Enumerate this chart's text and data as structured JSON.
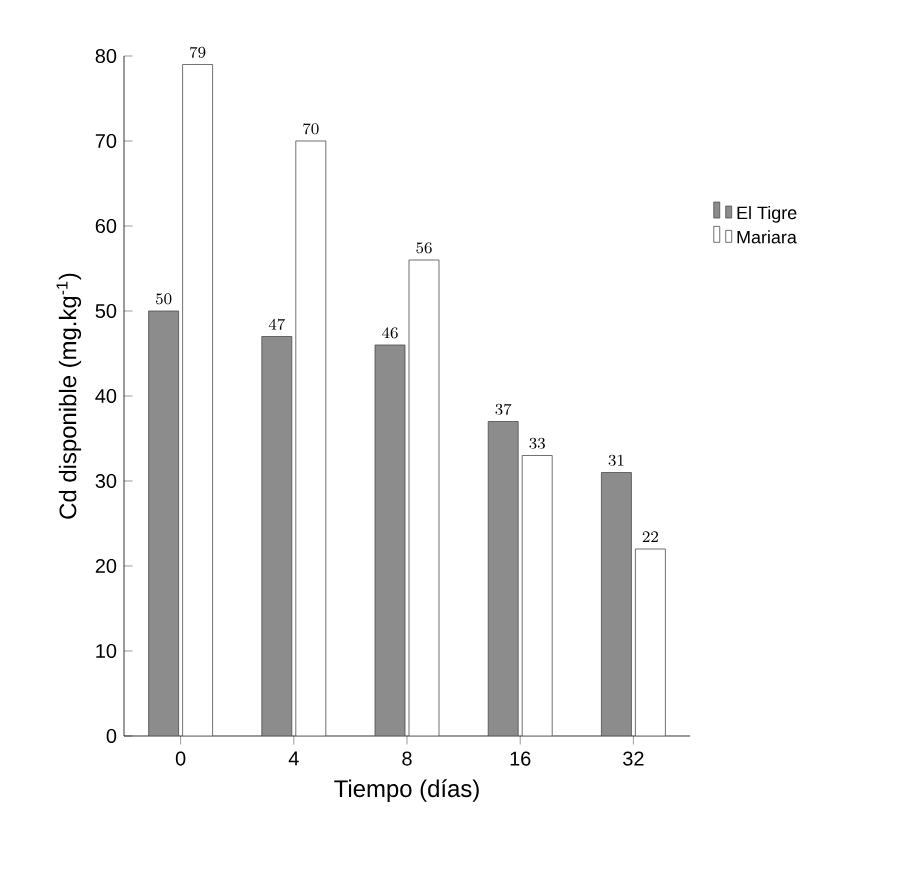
{
  "chart_data": {
    "type": "bar",
    "xlabel": "Tiempo (días)",
    "ylabel": "Cd disponible (mg.kg$^{-1}$)",
    "categories": [
      "0",
      "4",
      "8",
      "16",
      "32"
    ],
    "series": [
      {
        "name": "El Tigre",
        "color": "#8c8c8c",
        "values": [
          50,
          47,
          46,
          37,
          31
        ]
      },
      {
        "name": "Mariara",
        "color": "#ffffff",
        "values": [
          79,
          70,
          56,
          33,
          22
        ]
      }
    ],
    "ylim": [
      0,
      80
    ],
    "yticks": [
      0,
      10,
      20,
      30,
      40,
      50,
      60,
      70,
      80
    ],
    "data_labels": true,
    "legend": "right",
    "grid": false
  }
}
